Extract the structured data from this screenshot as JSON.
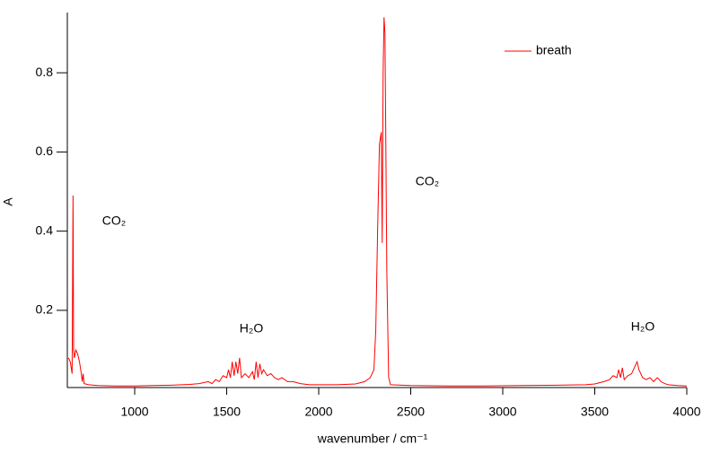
{
  "chart_data": {
    "type": "line",
    "xlabel": "wavenumber / cm⁻¹",
    "ylabel": "A",
    "x": [
      640,
      650,
      660,
      665,
      668,
      672,
      680,
      690,
      700,
      710,
      715,
      720,
      725,
      750,
      800,
      900,
      1000,
      1100,
      1200,
      1300,
      1350,
      1400,
      1420,
      1440,
      1460,
      1480,
      1500,
      1510,
      1520,
      1530,
      1540,
      1550,
      1560,
      1570,
      1580,
      1600,
      1620,
      1640,
      1650,
      1660,
      1670,
      1680,
      1690,
      1700,
      1720,
      1740,
      1760,
      1780,
      1800,
      1830,
      1860,
      1900,
      1950,
      2000,
      2100,
      2200,
      2250,
      2280,
      2300,
      2310,
      2320,
      2330,
      2340,
      2345,
      2350,
      2355,
      2360,
      2365,
      2370,
      2380,
      2390,
      2500,
      2700,
      2900,
      3100,
      3300,
      3450,
      3500,
      3550,
      3580,
      3600,
      3620,
      3630,
      3640,
      3650,
      3660,
      3680,
      3700,
      3720,
      3730,
      3740,
      3760,
      3780,
      3800,
      3820,
      3840,
      3860,
      3880,
      3900,
      3950,
      4000
    ],
    "series": [
      {
        "name": "breath",
        "color": "#ff0000",
        "values": [
          0.08,
          0.07,
          0.04,
          0.49,
          0.1,
          0.08,
          0.1,
          0.09,
          0.07,
          0.04,
          0.02,
          0.04,
          0.015,
          0.012,
          0.01,
          0.009,
          0.009,
          0.01,
          0.011,
          0.013,
          0.015,
          0.02,
          0.015,
          0.025,
          0.02,
          0.035,
          0.03,
          0.05,
          0.03,
          0.07,
          0.035,
          0.07,
          0.04,
          0.08,
          0.03,
          0.04,
          0.03,
          0.045,
          0.025,
          0.07,
          0.03,
          0.065,
          0.04,
          0.05,
          0.035,
          0.04,
          0.03,
          0.025,
          0.03,
          0.02,
          0.02,
          0.015,
          0.012,
          0.012,
          0.012,
          0.014,
          0.02,
          0.03,
          0.05,
          0.15,
          0.4,
          0.62,
          0.65,
          0.37,
          0.8,
          0.94,
          0.9,
          0.6,
          0.3,
          0.03,
          0.012,
          0.01,
          0.009,
          0.009,
          0.01,
          0.011,
          0.012,
          0.014,
          0.02,
          0.025,
          0.035,
          0.03,
          0.05,
          0.03,
          0.055,
          0.025,
          0.035,
          0.04,
          0.06,
          0.07,
          0.05,
          0.03,
          0.025,
          0.03,
          0.02,
          0.03,
          0.02,
          0.015,
          0.012,
          0.01,
          0.009
        ]
      }
    ],
    "xlim": [
      634,
      4000
    ],
    "ylim": [
      0.005,
      0.943
    ],
    "xticks": [
      1000,
      1500,
      2000,
      2500,
      3000,
      3500,
      4000
    ],
    "yticks": [
      0.2,
      0.4,
      0.6,
      0.8
    ],
    "annotations": [
      "CO₂",
      "H₂O",
      "CO₂",
      "H₂O"
    ],
    "legend": "top-right"
  }
}
